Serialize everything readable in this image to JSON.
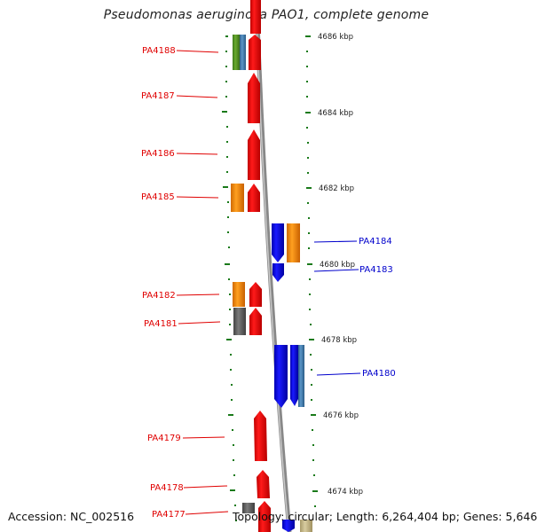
{
  "title": "Pseudomonas aeruginosa PAO1, complete genome",
  "footer": {
    "accession": "Accession: NC_002516",
    "info": "Topology: circular; Length: 6,264,404 bp; Genes: 5,646"
  },
  "kbp_labels": [
    "4686 kbp",
    "4684 kbp",
    "4682 kbp",
    "4680 kbp",
    "4678 kbp",
    "4676 kbp",
    "4674 kbp"
  ],
  "genes_forward": [
    "PA4188",
    "PA4187",
    "PA4186",
    "PA4185",
    "PA4182",
    "PA4181",
    "PA4179",
    "PA4178",
    "PA4177"
  ],
  "genes_reverse": [
    "PA4184",
    "PA4183",
    "PA4180"
  ],
  "colors": {
    "forward_strand": "#ff0000",
    "reverse_strand": "#0000ff",
    "orange_feature": "#ff8c00",
    "green_feature": "#5a9a2a",
    "steelblue_feature": "#4682b4",
    "gray_feature": "#666666",
    "tick_green": "#1a7a1a"
  }
}
